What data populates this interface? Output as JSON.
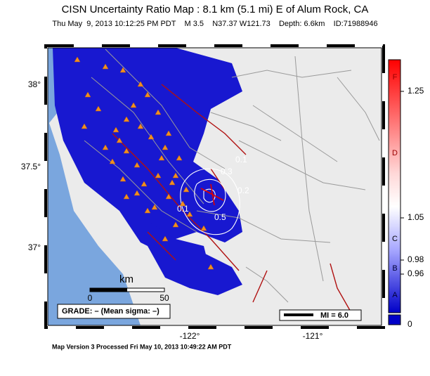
{
  "map": {
    "title": "CISN Uncertainty Ratio Map : 8.1 km (5.1 mi) E of Alum Rock, CA",
    "subtitle": "Thu May  9, 2013 10:12:25 PM PDT    M 3.5    N37.37 W121.73    Depth: 6.6km    ID:71988946",
    "lat_labels": [
      "38°",
      "37.5°",
      "37°"
    ],
    "lon_labels": [
      "-122°",
      "-121°"
    ],
    "colorbar": {
      "ticks": [
        "1.25",
        "1.05",
        "0.98",
        "0.96",
        "0"
      ],
      "grades": [
        "F",
        "D",
        "C",
        "B",
        "A"
      ]
    },
    "scale": {
      "unit": "km",
      "start": "0",
      "end": "50"
    },
    "grade": "GRADE: – (Mean sigma: –)",
    "mi_legend": "MI = 6.0",
    "contour_labels": [
      "0.1",
      "0.3",
      "0.2",
      "0.5",
      "0.1"
    ],
    "footer": "Map Version 3 Processed Fri May 10, 2013 10:49:22 AM PDT"
  }
}
